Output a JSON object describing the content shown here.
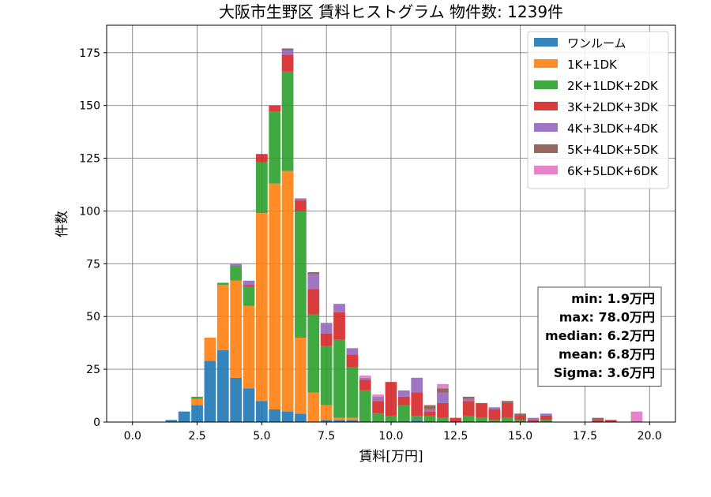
{
  "chart_data": {
    "type": "bar",
    "stacked": true,
    "title": "大阪市生野区 賃料ヒストグラム 物件数: 1239件",
    "xlabel": "賃料[万円]",
    "ylabel": "件数",
    "xlim": [
      -1.0,
      21.0
    ],
    "ylim": [
      0,
      188
    ],
    "bin_width": 0.5,
    "xticks": [
      0.0,
      2.5,
      5.0,
      7.5,
      10.0,
      12.5,
      15.0,
      17.5,
      20.0
    ],
    "xtick_labels": [
      "0.0",
      "2.5",
      "5.0",
      "7.5",
      "10.0",
      "12.5",
      "15.0",
      "17.5",
      "20.0"
    ],
    "yticks": [
      0,
      25,
      50,
      75,
      100,
      125,
      150,
      175
    ],
    "ytick_labels": [
      "0",
      "25",
      "50",
      "75",
      "100",
      "125",
      "150",
      "175"
    ],
    "grid": true,
    "legend_position": "top-right",
    "x": [
      1.5,
      2.0,
      2.5,
      3.0,
      3.5,
      4.0,
      4.5,
      5.0,
      5.5,
      6.0,
      6.5,
      7.0,
      7.5,
      8.0,
      8.5,
      9.0,
      9.5,
      10.0,
      10.5,
      11.0,
      11.5,
      12.0,
      12.5,
      13.0,
      13.5,
      14.0,
      14.5,
      15.0,
      15.5,
      16.0,
      18.0,
      18.5,
      19.5
    ],
    "series": [
      {
        "name": "ワンルーム",
        "color": "#1f77b4",
        "values": [
          1,
          5,
          8,
          29,
          34,
          21,
          16,
          10,
          6,
          5,
          4,
          0,
          1,
          1,
          1,
          0,
          0,
          0,
          0,
          1,
          0,
          0,
          0,
          0,
          0,
          0,
          0,
          0,
          0,
          0,
          0,
          0,
          0
        ]
      },
      {
        "name": "1K+1DK",
        "color": "#ff7f0e",
        "values": [
          0,
          0,
          3,
          11,
          31,
          46,
          39,
          89,
          107,
          114,
          36,
          14,
          7,
          1,
          1,
          0,
          0,
          0,
          0,
          0,
          0,
          0,
          0,
          0,
          0,
          0,
          0,
          0,
          0,
          0,
          0,
          0,
          0
        ]
      },
      {
        "name": "2K+1LDK+2DK",
        "color": "#2ca02c",
        "values": [
          0,
          0,
          1,
          0,
          1,
          7,
          9,
          24,
          34,
          47,
          60,
          37,
          28,
          37,
          24,
          15,
          4,
          3,
          8,
          2,
          3,
          2,
          0,
          3,
          2,
          1,
          2,
          1,
          0,
          1,
          0,
          0,
          0
        ]
      },
      {
        "name": "3K+2LDK+3DK",
        "color": "#d62728",
        "values": [
          0,
          0,
          0,
          0,
          0,
          0,
          1,
          4,
          3,
          8,
          5,
          12,
          6,
          13,
          6,
          5,
          6,
          16,
          4,
          11,
          2,
          7,
          2,
          7,
          7,
          5,
          7,
          2,
          1,
          2,
          1,
          1,
          0
        ]
      },
      {
        "name": "4K+3LDK+4DK",
        "color": "#9467bd",
        "values": [
          0,
          0,
          0,
          0,
          0,
          1,
          2,
          0,
          0,
          2,
          1,
          7,
          5,
          4,
          3,
          1,
          2,
          0,
          3,
          7,
          1,
          5,
          0,
          1,
          0,
          1,
          0,
          0,
          1,
          1,
          0,
          0,
          0
        ]
      },
      {
        "name": "5K+4LDK+5DK",
        "color": "#8c564b",
        "values": [
          0,
          0,
          0,
          0,
          0,
          0,
          0,
          0,
          0,
          1,
          0,
          1,
          0,
          0,
          0,
          0,
          0,
          0,
          0,
          0,
          2,
          2,
          0,
          1,
          0,
          0,
          1,
          1,
          0,
          0,
          1,
          0,
          0
        ]
      },
      {
        "name": "6K+5LDK+6DK",
        "color": "#e377c2",
        "values": [
          0,
          0,
          0,
          0,
          0,
          0,
          0,
          0,
          0,
          0,
          0,
          0,
          0,
          0,
          0,
          1,
          1,
          0,
          0,
          0,
          0,
          2,
          0,
          0,
          0,
          0,
          0,
          0,
          0,
          0,
          0,
          0,
          5
        ]
      }
    ],
    "stats": [
      "min: 1.9万円",
      "max: 78.0万円",
      "median: 6.2万円",
      "mean: 6.8万円",
      "Sigma: 3.6万円"
    ]
  }
}
